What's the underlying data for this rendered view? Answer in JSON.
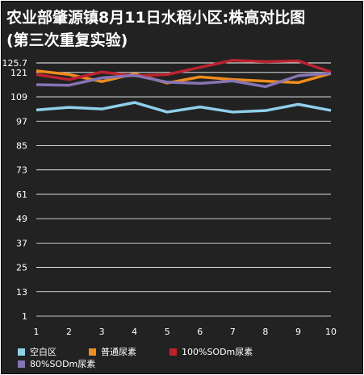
{
  "chart_data": {
    "type": "line",
    "title": "农业部肇源镇8月11日水稻小区:株高对比图",
    "subtitle": "(第三次重复实验)",
    "xlabel": "",
    "ylabel": "",
    "categories": [
      "1",
      "2",
      "3",
      "4",
      "5",
      "6",
      "7",
      "8",
      "9",
      "10"
    ],
    "y_ticks": [
      "125.7",
      "121",
      "109",
      "97",
      "85",
      "73",
      "61",
      "49",
      "37",
      "25",
      "13",
      "1"
    ],
    "ylim": [
      1,
      125.7
    ],
    "grid": true,
    "legend_position": "bottom",
    "series": [
      {
        "name": "空白区",
        "color": "#8fd0ea",
        "values": [
          102.5,
          103.8,
          103.0,
          106.2,
          101.5,
          104.0,
          101.5,
          102.2,
          105.3,
          102.3
        ]
      },
      {
        "name": "普通尿素",
        "color": "#f08c1e",
        "values": [
          121.8,
          120.0,
          116.5,
          120.3,
          115.8,
          118.8,
          117.5,
          116.7,
          116.0,
          120.5
        ]
      },
      {
        "name": "100%SODm尿素",
        "color": "#bb2330",
        "values": [
          120.0,
          117.5,
          121.2,
          119.3,
          120.0,
          123.5,
          127.0,
          126.3,
          126.7,
          121.2
        ]
      },
      {
        "name": "80%SODm尿素",
        "color": "#8674b3",
        "values": [
          115.0,
          114.7,
          118.3,
          119.6,
          116.2,
          115.6,
          116.8,
          114.0,
          119.4,
          120.6
        ]
      }
    ]
  }
}
